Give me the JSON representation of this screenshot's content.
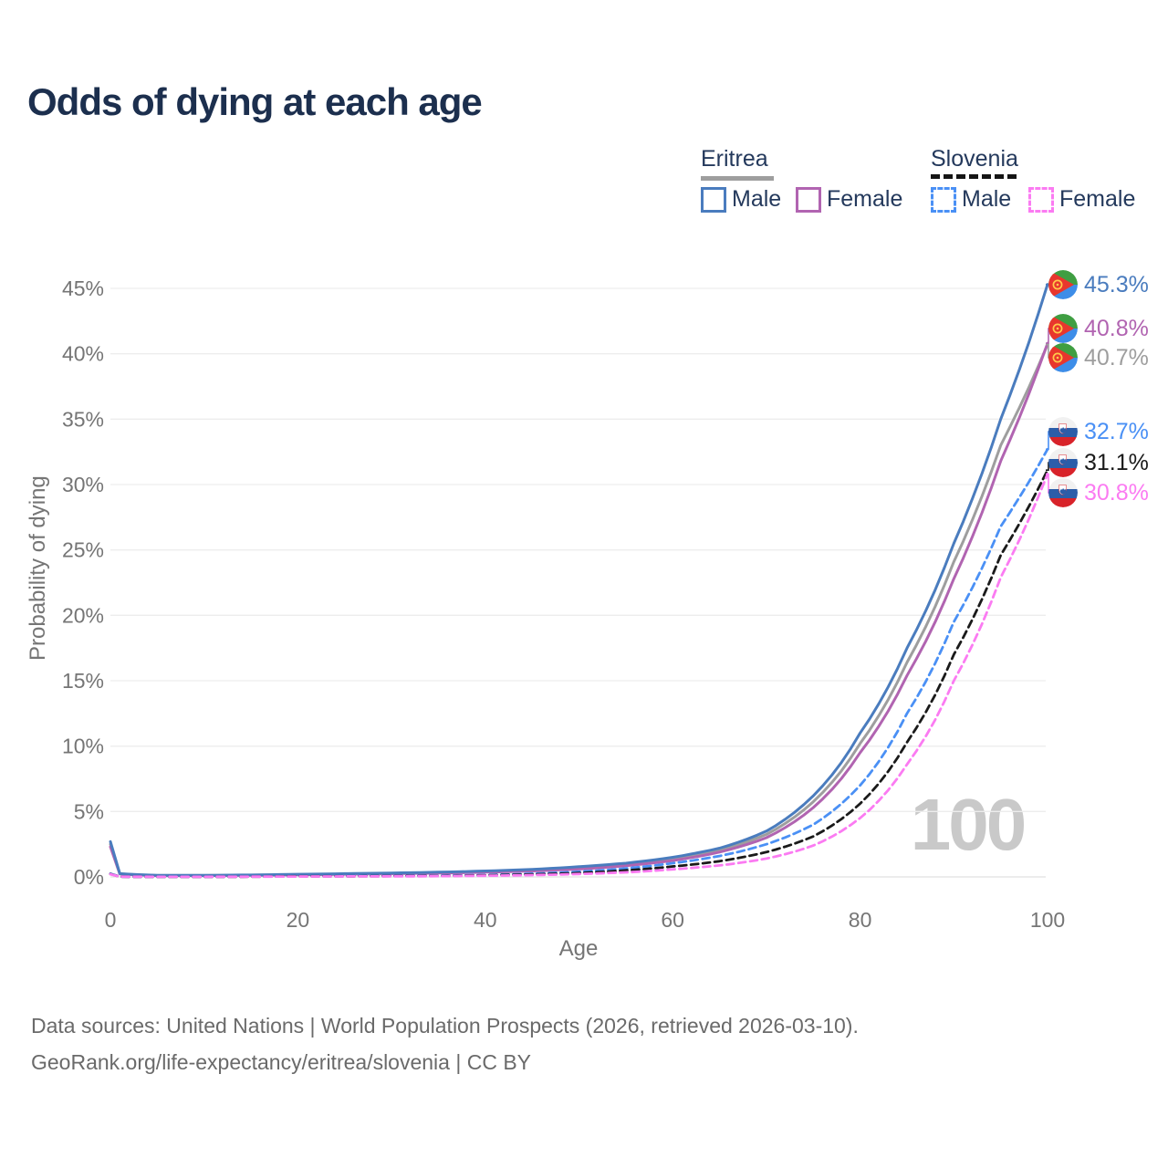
{
  "title": "Odds of dying at each age",
  "watermark": "100",
  "legend": {
    "groups": [
      {
        "country": "Eritrea",
        "line_style": "solid",
        "underline_color": "#9e9e9e",
        "items": [
          {
            "label": "Male",
            "color": "#4a7cbe"
          },
          {
            "label": "Female",
            "color": "#b164b1"
          }
        ]
      },
      {
        "country": "Slovenia",
        "line_style": "dashed",
        "underline_color": "#151515",
        "items": [
          {
            "label": "Male",
            "color": "#4a90f5"
          },
          {
            "label": "Female",
            "color": "#fb7bf2"
          }
        ]
      }
    ]
  },
  "chart_data": {
    "type": "line",
    "title": "Odds of dying at each age",
    "xlabel": "Age",
    "ylabel": "Probability of dying",
    "xlim": [
      0,
      100
    ],
    "ylim": [
      0,
      45
    ],
    "grid": true,
    "legend_position": "top-right",
    "x_ticks": [
      {
        "value": 0,
        "label": "0"
      },
      {
        "value": 20,
        "label": "20"
      },
      {
        "value": 40,
        "label": "40"
      },
      {
        "value": 60,
        "label": "60"
      },
      {
        "value": 80,
        "label": "80"
      },
      {
        "value": 100,
        "label": "100"
      }
    ],
    "y_ticks": [
      {
        "value": 45,
        "label": "45%"
      },
      {
        "value": 40,
        "label": "40%"
      },
      {
        "value": 35,
        "label": "35%"
      },
      {
        "value": 30,
        "label": "30%"
      },
      {
        "value": 25,
        "label": "25%"
      },
      {
        "value": 20,
        "label": "20%"
      },
      {
        "value": 15,
        "label": "15%"
      },
      {
        "value": 10,
        "label": "10%"
      },
      {
        "value": 5,
        "label": "5%"
      },
      {
        "value": 0,
        "label": "0%"
      }
    ],
    "ages": [
      0,
      1,
      5,
      10,
      15,
      20,
      25,
      30,
      35,
      40,
      45,
      50,
      55,
      60,
      65,
      70,
      75,
      80,
      85,
      90,
      95,
      100
    ],
    "unit": "percent",
    "series": [
      {
        "name": "Eritrea Male",
        "country": "Eritrea",
        "sex": "Male",
        "style": "solid",
        "color": "#4a7cbe",
        "end_label": "45.3%",
        "values": [
          2.7,
          0.25,
          0.12,
          0.12,
          0.15,
          0.2,
          0.25,
          0.3,
          0.36,
          0.45,
          0.58,
          0.78,
          1.05,
          1.5,
          2.2,
          3.5,
          6.2,
          11.0,
          17.5,
          25.5,
          35.0,
          45.3
        ]
      },
      {
        "name": "Eritrea Female",
        "country": "Eritrea",
        "sex": "Female",
        "style": "solid",
        "color": "#b164b1",
        "end_label": "40.8%",
        "values": [
          2.3,
          0.22,
          0.1,
          0.1,
          0.12,
          0.16,
          0.2,
          0.24,
          0.29,
          0.36,
          0.45,
          0.6,
          0.85,
          1.25,
          1.9,
          3.0,
          5.3,
          9.5,
          15.4,
          22.8,
          31.8,
          40.8
        ]
      },
      {
        "name": "Eritrea Both sexes",
        "country": "Eritrea",
        "sex": "Both",
        "style": "solid",
        "color": "#9e9e9e",
        "end_label": "40.7%",
        "values": [
          2.5,
          0.24,
          0.11,
          0.11,
          0.14,
          0.18,
          0.22,
          0.27,
          0.32,
          0.4,
          0.51,
          0.69,
          0.95,
          1.37,
          2.05,
          3.25,
          5.75,
          10.2,
          16.4,
          24.1,
          33.0,
          40.7
        ]
      },
      {
        "name": "Slovenia Male",
        "country": "Slovenia",
        "sex": "Male",
        "style": "dashed",
        "color": "#4a90f5",
        "end_label": "32.7%",
        "values": [
          0.25,
          0.02,
          0.01,
          0.01,
          0.03,
          0.06,
          0.07,
          0.08,
          0.1,
          0.15,
          0.25,
          0.4,
          0.65,
          1.05,
          1.6,
          2.5,
          4.0,
          7.0,
          12.5,
          19.5,
          26.8,
          32.7
        ]
      },
      {
        "name": "Slovenia Both sexes",
        "country": "Slovenia",
        "sex": "Both",
        "style": "dashed",
        "color": "#1a1a1a",
        "end_label": "31.1%",
        "values": [
          0.22,
          0.02,
          0.01,
          0.01,
          0.02,
          0.05,
          0.05,
          0.06,
          0.08,
          0.12,
          0.19,
          0.3,
          0.5,
          0.8,
          1.2,
          1.9,
          3.1,
          5.6,
          10.3,
          17.0,
          24.6,
          31.1
        ]
      },
      {
        "name": "Slovenia Female",
        "country": "Slovenia",
        "sex": "Female",
        "style": "dashed",
        "color": "#fb7bf2",
        "end_label": "30.8%",
        "values": [
          0.2,
          0.02,
          0.01,
          0.01,
          0.02,
          0.03,
          0.04,
          0.04,
          0.06,
          0.09,
          0.14,
          0.22,
          0.35,
          0.58,
          0.88,
          1.4,
          2.4,
          4.5,
          8.6,
          15.0,
          22.9,
          30.8
        ]
      }
    ]
  },
  "footer": {
    "line1": "Data sources: United Nations | World Population Prospects (2026, retrieved 2026-03-10).",
    "line2": "GeoRank.org/life-expectancy/eritrea/slovenia | CC BY"
  }
}
